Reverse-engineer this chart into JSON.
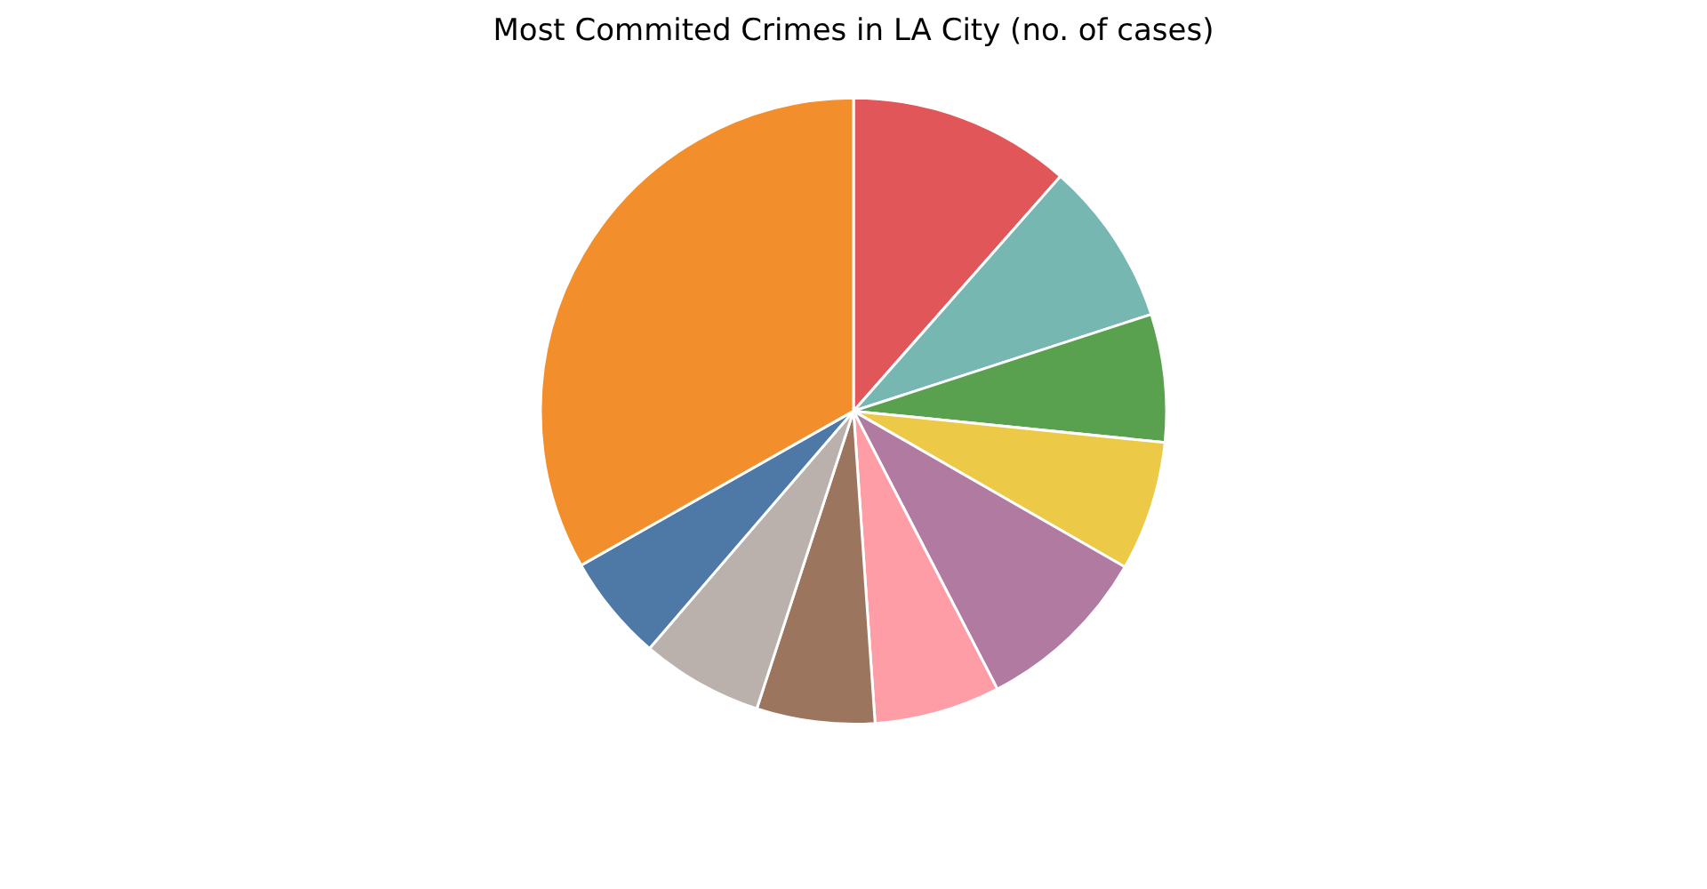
{
  "chart_data": {
    "type": "pie",
    "title": "Most Commited Crimes in LA City (no. of cases)",
    "categories": [
      null,
      null,
      null,
      null,
      null,
      null,
      null,
      null,
      null,
      null
    ],
    "values": [
      11.5,
      8.5,
      6.6,
      6.7,
      9.1,
      6.5,
      6.1,
      6.3,
      5.5,
      33.2
    ],
    "colors": [
      "#e15759",
      "#76b7b2",
      "#59a14f",
      "#edc948",
      "#b07aa1",
      "#ff9da7",
      "#9c755f",
      "#bab0ac",
      "#4e79a7",
      "#f28e2b"
    ]
  }
}
